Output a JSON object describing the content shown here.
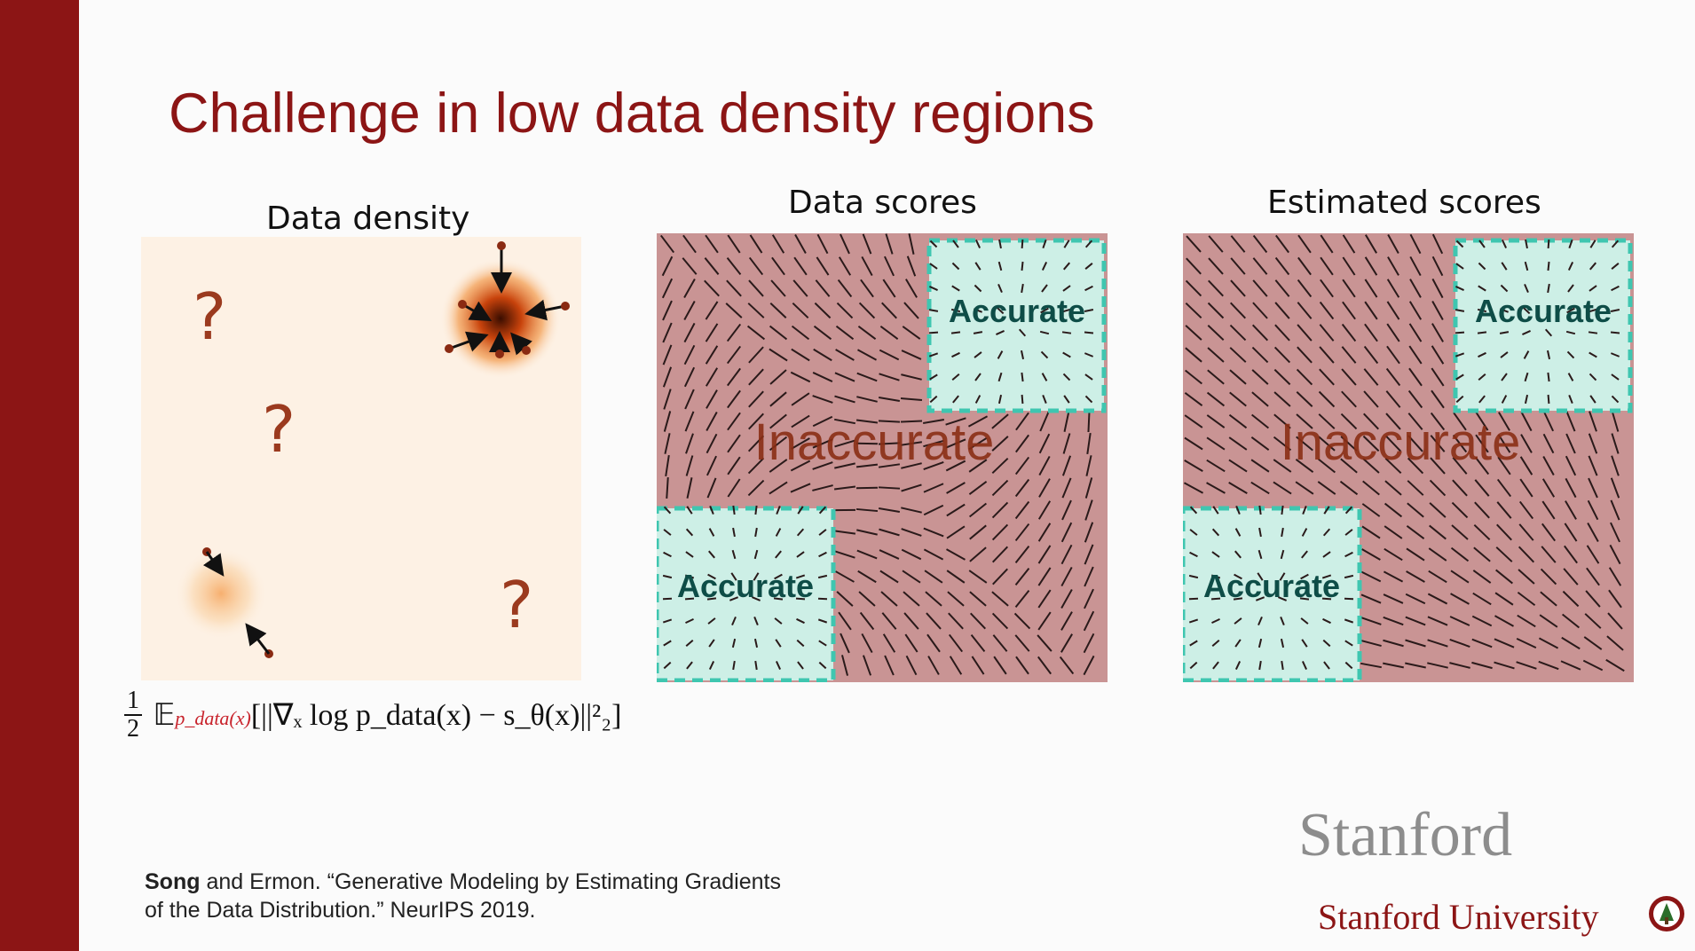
{
  "slide": {
    "title": "Challenge in low data density regions",
    "accent_color": "#8c1515"
  },
  "panels": {
    "density": {
      "title": "Data density",
      "question_mark": "?"
    },
    "data_scores": {
      "title": "Data scores",
      "accurate_label": "Accurate",
      "inaccurate_label": "Inaccurate"
    },
    "estimated_scores": {
      "title": "Estimated scores",
      "accurate_label": "Accurate",
      "inaccurate_label": "Inaccurate"
    }
  },
  "formula": {
    "frac_num": "1",
    "frac_den": "2",
    "expectation": "𝔼",
    "subscript": "p_data(x)",
    "body": "[||∇ₓ log p_data(x) − s_θ(x)||²₂]"
  },
  "citation": {
    "author_bold": "Song",
    "rest_line1": " and Ermon. “Generative Modeling by Estimating Gradients",
    "line2": "of the Data Distribution.” NeurIPS 2019."
  },
  "branding": {
    "wordmark": "Stanford",
    "university": "Stanford University",
    "seal_icon": "stanford-seal-icon"
  },
  "colors": {
    "inaccurate_fill": "#c99494",
    "accurate_fill": "#cdefe6",
    "accurate_border": "#3fc6b0",
    "accurate_text": "#0e4d47",
    "inaccurate_text": "#8a2d14",
    "question_color": "#9b3a1e"
  }
}
